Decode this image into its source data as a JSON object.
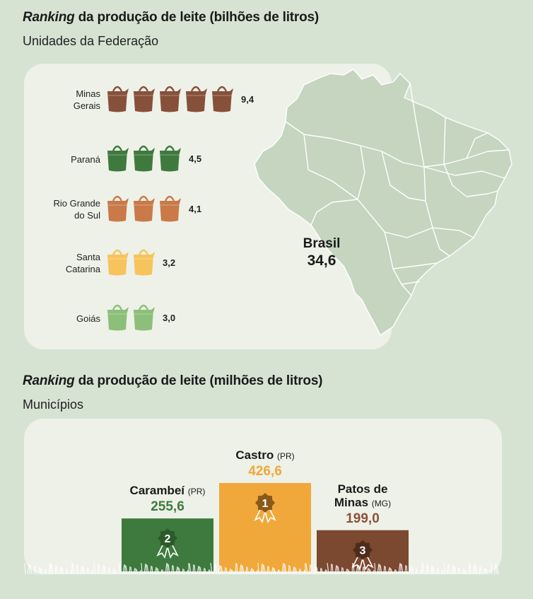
{
  "section1": {
    "title_italic": "Ranking",
    "title_rest": " da produção de leite (bilhões de litros)",
    "subtitle": "Unidades da Federação"
  },
  "section2": {
    "title_italic": "Ranking",
    "title_rest": " da produção de leite (milhões de litros)",
    "subtitle": "Municípios"
  },
  "brasil": {
    "label": "Brasil",
    "value": "34,6"
  },
  "colors": {
    "background": "#d6e3d3",
    "panel": "#eef1e8",
    "map": "#c5d5c0",
    "minas_gerais": "#87503a",
    "parana": "#3e7a3e",
    "rio_grande_do_sul": "#c97a48",
    "santa_catarina": "#f6c35c",
    "goias": "#8cbf7a",
    "castro": "#f0a83a",
    "carambei": "#3e7a3e",
    "patos_de_minas": "#7b4830"
  },
  "chart_data": [
    {
      "type": "bar",
      "title": "Ranking da produção de leite (bilhões de litros)",
      "subtitle": "Unidades da Federação",
      "unit": "bilhões de litros",
      "categories": [
        "Minas Gerais",
        "Paraná",
        "Rio Grande do Sul",
        "Santa Catarina",
        "Goiás"
      ],
      "label_lines": [
        [
          "Minas",
          "Gerais"
        ],
        [
          "Paraná"
        ],
        [
          "Rio Grande",
          "do Sul"
        ],
        [
          "Santa",
          "Catarina"
        ],
        [
          "Goiás"
        ]
      ],
      "values": [
        9.4,
        4.5,
        4.1,
        3.2,
        3.0
      ],
      "value_labels": [
        "9,4",
        "4,5",
        "4,1",
        "3,2",
        "3,0"
      ],
      "icons_shown": [
        5,
        3,
        3,
        2,
        2
      ],
      "icon": "milk-bucket-icon",
      "total_label": "Brasil",
      "total_value": 34.6
    },
    {
      "type": "bar",
      "title": "Ranking da produção de leite (milhões de litros)",
      "subtitle": "Municípios",
      "unit": "milhões de litros",
      "categories": [
        "Carambeí",
        "Castro",
        "Patos de Minas"
      ],
      "states": [
        "(PR)",
        "(PR)",
        "(MG)"
      ],
      "values": [
        255.6,
        426.6,
        199.0
      ],
      "value_labels": [
        "255,6",
        "426,6",
        "199,0"
      ],
      "ranks": [
        "2",
        "1",
        "3"
      ],
      "layout": "podium"
    }
  ]
}
